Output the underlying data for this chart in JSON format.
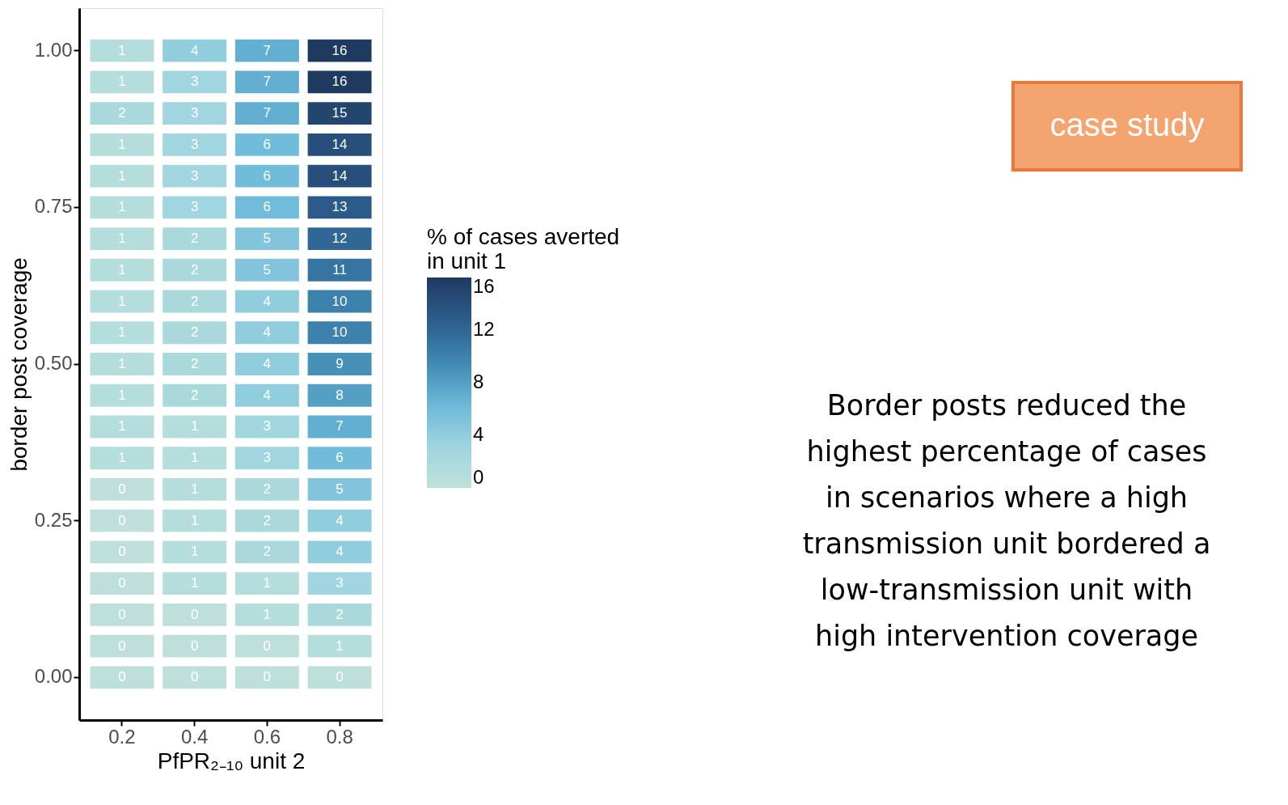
{
  "chart_data": {
    "type": "heatmap",
    "xlabel": "PfPR₂₋₁₀ unit 2",
    "ylabel": "border post coverage",
    "legend_title": "% of cases averted in unit 1",
    "categories": [
      "0.2",
      "0.4",
      "0.6",
      "0.8"
    ],
    "y_categories": [
      "1.00",
      null,
      null,
      null,
      null,
      "0.75",
      null,
      null,
      null,
      null,
      "0.50",
      null,
      null,
      null,
      null,
      "0.25",
      null,
      null,
      null,
      null,
      "0.00"
    ],
    "cells": [
      [
        1,
        4,
        7,
        16
      ],
      [
        1,
        3,
        7,
        16
      ],
      [
        2,
        3,
        7,
        15
      ],
      [
        1,
        3,
        6,
        14
      ],
      [
        1,
        3,
        6,
        14
      ],
      [
        1,
        3,
        6,
        13
      ],
      [
        1,
        2,
        5,
        12
      ],
      [
        1,
        2,
        5,
        11
      ],
      [
        1,
        2,
        4,
        10
      ],
      [
        1,
        2,
        4,
        10
      ],
      [
        1,
        2,
        4,
        9
      ],
      [
        1,
        2,
        4,
        8
      ],
      [
        1,
        1,
        3,
        7
      ],
      [
        1,
        1,
        3,
        6
      ],
      [
        0,
        1,
        2,
        5
      ],
      [
        0,
        1,
        2,
        4
      ],
      [
        0,
        1,
        2,
        4
      ],
      [
        0,
        1,
        1,
        3
      ],
      [
        0,
        0,
        1,
        2
      ],
      [
        0,
        0,
        0,
        1
      ],
      [
        0,
        0,
        0,
        0
      ]
    ],
    "data_labels": true,
    "clim": [
      0,
      16
    ],
    "cticks": [
      0,
      4,
      8,
      12,
      16
    ],
    "grid": false,
    "annotations": [
      "case study",
      "Border posts reduced the highest percentage of cases in scenarios where a high transmission unit bordered a low-transmission unit with high intervention coverage"
    ]
  }
}
